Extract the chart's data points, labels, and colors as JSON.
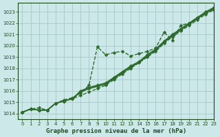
{
  "title": "Graphe pression niveau de la mer (hPa)",
  "bg_color": "#cce8e8",
  "grid_color": "#aacccc",
  "line_color": "#2d6a2d",
  "xlim": [
    -0.5,
    23
  ],
  "ylim": [
    1013.5,
    1023.8
  ],
  "yticks": [
    1014,
    1015,
    1016,
    1017,
    1018,
    1019,
    1020,
    1021,
    1022,
    1023
  ],
  "xticks": [
    0,
    1,
    2,
    3,
    4,
    5,
    6,
    7,
    8,
    9,
    10,
    11,
    12,
    13,
    14,
    15,
    16,
    17,
    18,
    19,
    20,
    21,
    22,
    23
  ],
  "series": [
    {
      "y": [
        1014.1,
        1014.4,
        1014.5,
        1014.3,
        1014.9,
        1015.1,
        1015.3,
        1015.6,
        1015.9,
        1016.2,
        1016.5,
        1017.0,
        1017.5,
        1018.0,
        1018.5,
        1019.0,
        1019.5,
        1020.2,
        1020.8,
        1021.3,
        1021.8,
        1022.3,
        1022.8,
        1023.2
      ],
      "ls": "--",
      "lw": 1.0
    },
    {
      "y": [
        1014.1,
        1014.4,
        1014.3,
        1014.3,
        1014.9,
        1015.2,
        1015.4,
        1015.8,
        1016.5,
        1019.9,
        1019.2,
        1019.4,
        1019.5,
        1019.1,
        1019.3,
        1019.5,
        1019.8,
        1021.2,
        1020.5,
        1021.8,
        1022.0,
        1022.5,
        1022.9,
        1023.2
      ],
      "ls": "--",
      "lw": 1.0
    },
    {
      "y": [
        1014.1,
        1014.4,
        1014.3,
        1014.3,
        1014.9,
        1015.1,
        1015.3,
        1015.9,
        1016.2,
        1016.4,
        1016.6,
        1017.1,
        1017.6,
        1018.1,
        1018.5,
        1019.1,
        1019.6,
        1020.3,
        1020.9,
        1021.4,
        1021.9,
        1022.4,
        1022.9,
        1023.3
      ],
      "ls": "-",
      "lw": 1.2
    },
    {
      "y": [
        1014.1,
        1014.4,
        1014.3,
        1014.3,
        1014.9,
        1015.1,
        1015.3,
        1016.0,
        1016.3,
        1016.5,
        1016.7,
        1017.2,
        1017.7,
        1018.2,
        1018.6,
        1019.2,
        1019.7,
        1020.4,
        1021.0,
        1021.5,
        1022.0,
        1022.5,
        1023.0,
        1023.4
      ],
      "ls": "-",
      "lw": 1.2
    }
  ],
  "marker": "D",
  "markersize": 2.5,
  "title_fontsize": 6.5,
  "tick_fontsize": 5.0,
  "title_color": "#1a4a1a",
  "tick_color": "#1a4a1a"
}
